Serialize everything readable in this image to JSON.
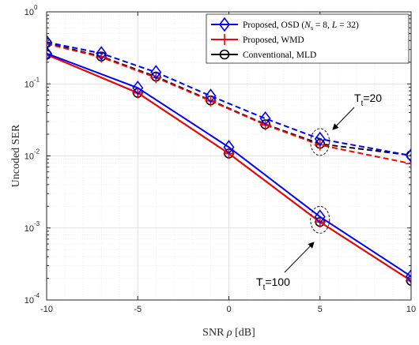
{
  "chart_data": {
    "type": "line",
    "xlabel_prefix": "SNR ",
    "xlabel_symbol": "ρ",
    "xlabel_suffix": " [dB]",
    "ylabel": "Uncoded SER",
    "x_ticks": [
      "-10",
      "-5",
      "0",
      "5",
      "10"
    ],
    "y_ticks": [
      {
        "value": 1,
        "base": "10",
        "exp": "0"
      },
      {
        "value": 0.1,
        "base": "10",
        "exp": "-1"
      },
      {
        "value": 0.01,
        "base": "10",
        "exp": "-2"
      },
      {
        "value": 0.001,
        "base": "10",
        "exp": "-3"
      },
      {
        "value": 0.0001,
        "base": "10",
        "exp": "-4"
      }
    ],
    "xlim": [
      -10,
      10
    ],
    "ylim": [
      0.0001,
      1
    ],
    "yscale": "log",
    "grid": true,
    "legend_position": "top-right",
    "legend": [
      {
        "name": "Proposed, OSD (N_s = 8, L = 32)",
        "text_main": "Proposed, OSD (",
        "text_math": "N",
        "text_sub": "s",
        "text_rest": " = 8, ",
        "text_math2": "L",
        "text_end": " = 32)",
        "color": "#0000ff",
        "marker": "diamond"
      },
      {
        "name": "Proposed, WMD",
        "text_main": "Proposed, WMD",
        "color": "#ff0000",
        "marker": "plus"
      },
      {
        "name": "Conventional, MLD",
        "text_main": "Conventional, MLD",
        "color": "#000000",
        "marker": "circle"
      }
    ],
    "series": [
      {
        "name": "Proposed, OSD (N_s = 8, L = 32)",
        "group": "T_t=20",
        "style": "dashed",
        "color": "#0000ff",
        "marker": "diamond",
        "x": [
          -10,
          -7,
          -4,
          -1,
          2,
          5,
          10
        ],
        "y": [
          0.38,
          0.265,
          0.145,
          0.068,
          0.033,
          0.0172,
          0.0101
        ]
      },
      {
        "name": "Proposed, WMD",
        "group": "T_t=20",
        "style": "dashed",
        "color": "#ff0000",
        "marker": "plus",
        "x": [
          -10,
          -7,
          -4,
          -1,
          2,
          5,
          10
        ],
        "y": [
          0.36,
          0.235,
          0.122,
          0.058,
          0.027,
          0.0142,
          0.0078
        ]
      },
      {
        "name": "Conventional, MLD",
        "group": "T_t=20",
        "style": "dashed",
        "color": "#000000",
        "marker": "circle",
        "x": [
          -10,
          -7,
          -4,
          -1,
          2,
          5,
          10
        ],
        "y": [
          0.37,
          0.24,
          0.126,
          0.059,
          0.0275,
          0.0147,
          0.0102
        ]
      },
      {
        "name": "Proposed, OSD (N_s = 8, L = 32)",
        "group": "T_t=100",
        "style": "solid",
        "color": "#0000ff",
        "marker": "diamond",
        "x": [
          -10,
          -5,
          0,
          5,
          10
        ],
        "y": [
          0.265,
          0.088,
          0.0132,
          0.00143,
          0.000213
        ]
      },
      {
        "name": "Proposed, WMD",
        "group": "T_t=100",
        "style": "solid",
        "color": "#ff0000",
        "marker": "plus",
        "x": [
          -10,
          -5,
          0,
          5,
          10
        ],
        "y": [
          0.255,
          0.075,
          0.0108,
          0.00121,
          0.000185
        ]
      },
      {
        "name": "Conventional, MLD",
        "group": "T_t=100",
        "style": "solid",
        "color": "#000000",
        "marker": "circle",
        "x": [
          -10,
          -5,
          0,
          5,
          10
        ],
        "y": [
          0.255,
          0.075,
          0.0108,
          0.00121,
          0.000185
        ]
      }
    ],
    "annotations": [
      {
        "base": "T",
        "sub": "t",
        "rest": "=20",
        "x": 5,
        "y": 0.0155
      },
      {
        "base": "T",
        "sub": "t",
        "rest": "=100",
        "x": 5,
        "y": 0.0013
      }
    ]
  }
}
